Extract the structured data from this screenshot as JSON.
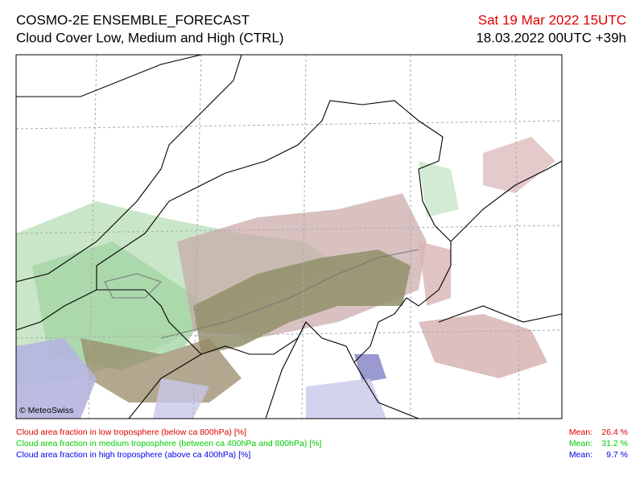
{
  "header": {
    "title": "COSMO-2E ENSEMBLE_FORECAST",
    "subtitle": "Cloud Cover Low, Medium and High (CTRL)",
    "valid_time": "Sat 19 Mar 2022 15UTC",
    "run_time": "18.03.2022 00UTC +39h"
  },
  "map": {
    "credit": "© MeteoSwiss"
  },
  "legend": {
    "items": [
      {
        "label": "Cloud area fraction in low troposphere (below ca 800hPa) [%]",
        "mean_label": "Mean:",
        "mean": "26.4 %",
        "color": "#e00000"
      },
      {
        "label": "Cloud area fraction in medium troposphere (between ca 400hPa and 800hPa) [%]",
        "mean_label": "Mean:",
        "mean": "31.2 %",
        "color": "#00cc00"
      },
      {
        "label": "Cloud area fraction in high troposphere (above ca 400hPa) [%]",
        "mean_label": "Mean:",
        "mean": "9.7 %",
        "color": "#0000ee"
      }
    ]
  }
}
